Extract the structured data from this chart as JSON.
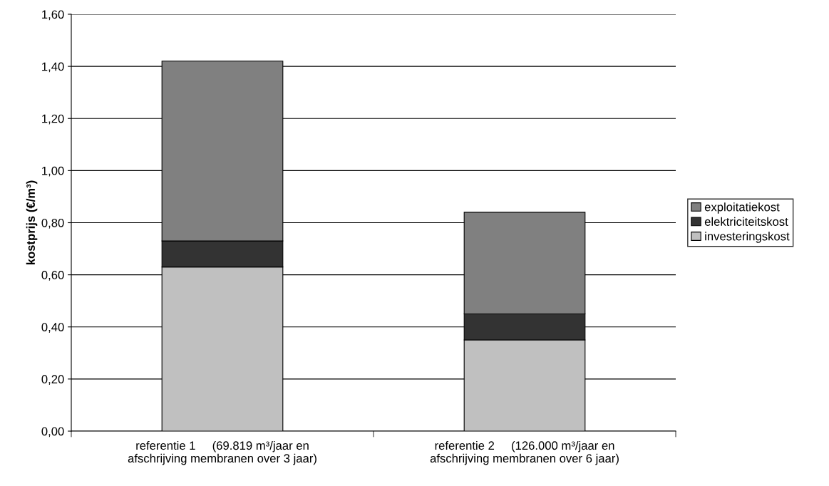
{
  "chart_data": {
    "type": "bar",
    "stacked": true,
    "ylabel": "kostprijs (€/m³)",
    "categories": [
      "referentie 1     (69.819 m³/jaar en\nafschrijving membranen over 3 jaar)",
      "referentie 2     (126.000 m³/jaar en\nafschrijving membranen over 6 jaar)"
    ],
    "series": [
      {
        "name": "investeringskost",
        "color": "#c0c0c0",
        "values": [
          0.63,
          0.35
        ]
      },
      {
        "name": "elektriciteitskost",
        "color": "#333333",
        "values": [
          0.1,
          0.1
        ]
      },
      {
        "name": "exploitatiekost",
        "color": "#808080",
        "values": [
          0.69,
          0.39
        ]
      }
    ],
    "ylim": [
      0,
      1.6
    ],
    "yticks": [
      {
        "value": 0,
        "label": "0,00"
      },
      {
        "value": 0.2,
        "label": "0,20"
      },
      {
        "value": 0.4,
        "label": "0,40"
      },
      {
        "value": 0.6,
        "label": "0,60"
      },
      {
        "value": 0.8,
        "label": "0,80"
      },
      {
        "value": 1.0,
        "label": "1,00"
      },
      {
        "value": 1.2,
        "label": "1,20"
      },
      {
        "value": 1.4,
        "label": "1,40"
      },
      {
        "value": 1.6,
        "label": "1,60"
      }
    ],
    "grid": "y",
    "legend": "right"
  }
}
